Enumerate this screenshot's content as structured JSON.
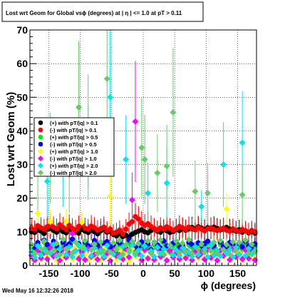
{
  "canvas": {
    "title": "Lost wrt Geom for Global vsϕ (degrees) at | η | <= 1.0 at pT > 0.11",
    "timestamp": "Wed May 16 12:32:26 2018"
  },
  "chart_data": {
    "type": "scatter",
    "title": "Lost wrt Geom for Global vsϕ (degrees) at | η | <= 1.0 at pT > 0.11",
    "xlabel": "ϕ (degrees)",
    "ylabel": "Lost wrt Geom (%)",
    "xlim": [
      -180,
      180
    ],
    "ylim": [
      0,
      70
    ],
    "x_ticks": [
      -150,
      -100,
      -50,
      0,
      50,
      100,
      150
    ],
    "y_ticks": [
      0,
      10,
      20,
      30,
      40,
      50,
      60,
      70
    ],
    "grid": true,
    "legend_position": "left-middle",
    "x": [
      -177.5,
      -172.5,
      -167.5,
      -162.5,
      -157.5,
      -152.5,
      -147.5,
      -142.5,
      -137.5,
      -132.5,
      -127.5,
      -122.5,
      -117.5,
      -112.5,
      -107.5,
      -102.5,
      -97.5,
      -92.5,
      -87.5,
      -82.5,
      -77.5,
      -72.5,
      -67.5,
      -62.5,
      -57.5,
      -52.5,
      -47.5,
      -42.5,
      -37.5,
      -32.5,
      -27.5,
      -22.5,
      -17.5,
      -12.5,
      -7.5,
      -2.5,
      2.5,
      7.5,
      12.5,
      17.5,
      22.5,
      27.5,
      32.5,
      37.5,
      42.5,
      47.5,
      52.5,
      57.5,
      62.5,
      67.5,
      72.5,
      77.5,
      82.5,
      87.5,
      92.5,
      97.5,
      102.5,
      107.5,
      112.5,
      117.5,
      122.5,
      127.5,
      132.5,
      137.5,
      142.5,
      147.5,
      152.5,
      157.5,
      162.5,
      167.5,
      172.5,
      177.5
    ],
    "series": [
      {
        "name": "(+) with pT/|q| > 0.1",
        "color": "#000000",
        "marker": "circle",
        "values": [
          10.0,
          9.8,
          10.5,
          10.2,
          9.5,
          10.8,
          11.0,
          10.4,
          9.9,
          10.6,
          10.1,
          9.7,
          10.9,
          10.3,
          10.0,
          9.6,
          10.7,
          10.2,
          9.8,
          10.5,
          10.0,
          9.4,
          10.3,
          10.8,
          9.9,
          10.1,
          9.2,
          8.8,
          9.5,
          8.6,
          9.0,
          8.4,
          9.3,
          9.8,
          10.2,
          10.6,
          10.0,
          9.7,
          10.4,
          10.9,
          10.2,
          9.9,
          10.6,
          10.3,
          9.8,
          10.1,
          10.7,
          10.4,
          11.0,
          10.5,
          10.9,
          11.3,
          10.8,
          11.5,
          11.1,
          10.7,
          11.2,
          10.9,
          11.4,
          11.0,
          10.6,
          10.9,
          11.3,
          10.8,
          10.5,
          10.2,
          10.6,
          9.9,
          10.3,
          9.7,
          10.1,
          9.6
        ]
      },
      {
        "name": "(-) with pT/|q| > 0.1",
        "color": "#ff0000",
        "marker": "circle",
        "values": [
          11.0,
          10.5,
          11.8,
          11.2,
          10.8,
          11.5,
          12.0,
          11.4,
          10.9,
          12.1,
          11.3,
          10.7,
          11.9,
          11.0,
          10.6,
          11.6,
          12.2,
          11.1,
          10.8,
          11.7,
          11.2,
          10.5,
          10.9,
          11.4,
          10.3,
          10.8,
          9.6,
          9.9,
          10.5,
          9.4,
          10.8,
          12.3,
          13.0,
          14.5,
          13.8,
          12.6,
          11.9,
          12.4,
          11.6,
          11.0,
          10.5,
          11.2,
          10.8,
          11.5,
          11.0,
          10.4,
          10.9,
          11.6,
          11.2,
          10.7,
          11.4,
          10.9,
          10.6,
          11.3,
          10.8,
          10.3,
          10.9,
          11.2,
          10.7,
          10.4,
          10.8,
          11.1,
          10.5,
          10.2,
          10.9,
          10.4,
          10.1,
          10.7,
          10.3,
          9.9,
          10.4,
          10.0
        ]
      },
      {
        "name": "(+) with pT/|q| > 0.5",
        "color": "#00ee00",
        "marker": "circle",
        "values": [
          5.2,
          4.8,
          6.1,
          3.9,
          7.0,
          5.5,
          4.2,
          6.6,
          5.0,
          3.6,
          6.2,
          4.9,
          5.7,
          7.3,
          4.4,
          5.9,
          3.8,
          6.4,
          5.1,
          4.6,
          6.8,
          5.3,
          4.0,
          5.8,
          6.5,
          4.7,
          5.4,
          3.7,
          6.0,
          5.2,
          4.3,
          6.9,
          5.6,
          4.1,
          5.0,
          6.3,
          4.8,
          5.7,
          3.9,
          6.1,
          5.4,
          4.5,
          6.7,
          5.1,
          4.0,
          5.9,
          6.4,
          4.6,
          5.3,
          3.8,
          6.2,
          5.5,
          4.9,
          6.0,
          4.2,
          5.8,
          6.6,
          4.4,
          5.2,
          3.7,
          6.3,
          5.0,
          4.7,
          6.1,
          5.6,
          4.3,
          5.9,
          4.8,
          6.5,
          5.1,
          4.1,
          5.7
        ]
      },
      {
        "name": "(-) with pT/|q| > 0.5",
        "color": "#0000ff",
        "marker": "circle",
        "values": [
          6.0,
          5.4,
          6.8,
          4.6,
          7.5,
          6.2,
          5.1,
          7.2,
          5.8,
          4.3,
          6.9,
          5.6,
          6.4,
          7.8,
          5.0,
          6.5,
          4.4,
          7.0,
          5.9,
          5.2,
          7.4,
          6.0,
          4.8,
          6.6,
          7.1,
          5.5,
          6.1,
          4.5,
          6.7,
          5.9,
          5.0,
          7.6,
          6.3,
          4.9,
          5.7,
          7.0,
          5.5,
          6.4,
          4.7,
          6.8,
          6.1,
          5.2,
          7.3,
          5.8,
          4.6,
          6.6,
          7.1,
          5.3,
          6.0,
          4.4,
          6.9,
          6.2,
          5.6,
          6.7,
          4.9,
          6.5,
          7.2,
          5.1,
          5.9,
          4.3,
          7.0,
          5.7,
          5.4,
          6.8,
          6.3,
          5.0,
          6.6,
          5.5,
          7.2,
          5.8,
          4.8,
          6.4
        ]
      },
      {
        "name": "(+) with pT/|q| > 1.0",
        "color": "#ffff00",
        "marker": "diamond",
        "values": [
          2.1,
          3.5,
          15.5,
          1.8,
          4.2,
          2.9,
          13.0,
          3.1,
          1.5,
          4.8,
          2.4,
          13.2,
          3.7,
          1.9,
          5.0,
          2.6,
          12.8,
          3.3,
          1.7,
          4.5,
          2.2,
          3.9,
          1.6,
          5.1,
          2.8,
          20.5,
          3.4,
          1.8,
          4.6,
          2.5,
          3.8,
          1.4,
          4.9,
          2.7,
          3.2,
          1.9,
          4.4,
          2.3,
          3.6,
          1.7,
          5.2,
          2.9,
          3.0,
          1.5,
          4.7,
          2.4,
          3.9,
          1.8,
          5.0,
          2.6,
          3.4,
          1.6,
          4.3,
          2.1,
          3.7,
          1.9,
          4.8,
          2.8,
          3.2,
          1.4,
          4.6,
          2.5,
          16.8,
          1.7,
          5.1,
          2.3,
          3.8,
          1.6,
          4.4,
          2.7,
          3.1,
          1.9
        ]
      },
      {
        "name": "(-) with pT/|q| > 1.0",
        "color": "#ff00ff",
        "marker": "diamond",
        "values": [
          3.0,
          1.6,
          4.5,
          2.2,
          3.8,
          1.9,
          5.2,
          2.7,
          3.4,
          1.5,
          4.9,
          2.4,
          3.7,
          9.5,
          4.3,
          2.0,
          3.9,
          1.7,
          5.0,
          2.6,
          3.3,
          1.8,
          4.7,
          2.3,
          3.6,
          1.4,
          4.4,
          2.8,
          3.1,
          1.9,
          4.8,
          2.5,
          19.5,
          42.8,
          3.5,
          1.6,
          4.6,
          2.1,
          3.9,
          1.7,
          5.1,
          2.6,
          3.2,
          1.5,
          4.5,
          2.4,
          3.8,
          1.9,
          4.9,
          2.2,
          3.4,
          1.6,
          4.2,
          2.7,
          3.6,
          1.8,
          4.7,
          2.3,
          3.1,
          1.5,
          4.4,
          2.9,
          3.7,
          1.7,
          5.0,
          2.5,
          3.3,
          1.9,
          4.6,
          2.1,
          3.8,
          1.6
        ]
      },
      {
        "name": "(+) with pT/|q| > 2.0",
        "color": "#00e5ee",
        "marker": "diamond",
        "values": [
          4.0,
          2.5,
          5.8,
          3.1,
          4.6,
          25.0,
          3.7,
          6.2,
          2.8,
          4.9,
          30.0,
          3.3,
          5.5,
          2.6,
          4.2,
          6.0,
          3.0,
          4.8,
          33.5,
          2.9,
          5.3,
          3.6,
          4.4,
          2.7,
          5.9,
          50.0,
          3.4,
          4.7,
          2.5,
          5.6,
          31.5,
          4.1,
          6.1,
          3.2,
          4.5,
          2.8,
          5.7,
          21.5,
          4.3,
          2.6,
          5.4,
          3.5,
          4.9,
          24.5,
          5.8,
          3.1,
          4.6,
          2.9,
          5.2,
          3.8,
          4.0,
          2.7,
          5.6,
          3.3,
          17.5,
          4.8,
          2.5,
          5.9,
          3.0,
          4.4,
          2.8,
          30.0,
          3.6,
          4.7,
          2.6,
          5.3,
          3.2,
          36.5,
          2.9,
          5.0,
          3.4,
          4.5
        ]
      },
      {
        "name": "(-) with pT/|q| > 2.0",
        "color": "#66cc66",
        "marker": "diamond",
        "values": [
          6.0,
          3.4,
          27.5,
          5.0,
          7.2,
          3.8,
          32.0,
          4.5,
          6.6,
          3.2,
          7.8,
          4.9,
          27.0,
          3.6,
          6.9,
          47.0,
          5.2,
          7.4,
          40.0,
          4.7,
          6.3,
          3.5,
          7.0,
          4.2,
          55.5,
          3.9,
          6.7,
          4.8,
          7.5,
          3.3,
          6.1,
          4.6,
          7.1,
          3.7,
          6.5,
          35.0,
          31.5,
          7.3,
          3.6,
          6.8,
          27.5,
          7.6,
          3.4,
          29.5,
          6.0,
          45.5,
          7.2,
          3.8,
          6.6,
          4.3,
          7.7,
          3.5,
          22.0,
          4.9,
          6.4,
          3.9,
          21.5,
          4.4,
          6.9,
          3.6,
          7.4,
          4.7,
          6.2,
          3.3,
          7.0,
          4.5,
          6.8,
          21.0,
          7.5,
          3.7,
          6.3,
          4.1
        ]
      }
    ]
  }
}
